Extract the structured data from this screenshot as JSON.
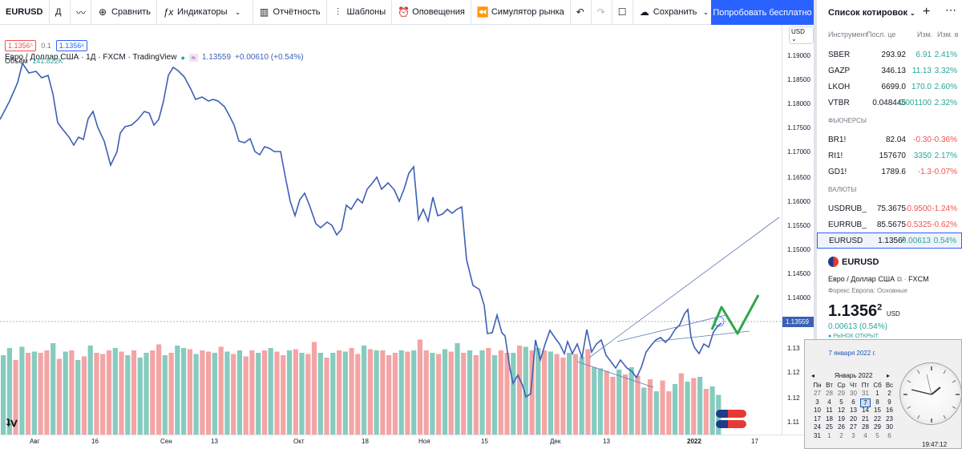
{
  "toolbar": {
    "symbol": "EURUSD",
    "interval": "Д",
    "compare": "Сравнить",
    "indicators": "Индикаторы",
    "reports": "Отчётность",
    "templates": "Шаблоны",
    "alerts": "Оповещения",
    "replay": "Симулятор рынка",
    "save": "Сохранить",
    "try_free": "Попробовать бесплатно"
  },
  "legend": {
    "title": "Евро / Доллар США · 1Д · FXCM · TradingView",
    "last": "1.13559",
    "change": "+0.00610 (+0.54%)",
    "bid": "1.1356⁵",
    "spread": "0.1",
    "ask": "1.1356⁶",
    "volume_label": "Объём",
    "volume_value": "141.822K"
  },
  "price_axis": {
    "currency": "USD",
    "ticks": [
      "1.19000",
      "1.18500",
      "1.18000",
      "1.17500",
      "1.17000",
      "1.16500",
      "1.16000",
      "1.15500",
      "1.15000",
      "1.14500",
      "1.14000",
      "1.13500",
      "1.13",
      "1.12",
      "1.12",
      "1.11"
    ],
    "current_price": "1.13559"
  },
  "time_axis": {
    "ticks": [
      "Авг",
      "16",
      "Сен",
      "13",
      "Окт",
      "18",
      "Ноя",
      "15",
      "Дек",
      "13",
      "2022",
      "17"
    ]
  },
  "chart_data": {
    "type": "line",
    "price_line_color": "#3d5fb5",
    "volume_up_color": "#86cbbf",
    "volume_down_color": "#f4a4a4",
    "ylim": [
      1.11,
      1.19
    ]
  },
  "watchlist": {
    "title": "Список котировок",
    "headers": [
      "Инструмент",
      "Посл. це",
      "Изм.",
      "Изм. в"
    ],
    "stocks": [
      {
        "sym": "SBER",
        "last": "293.92",
        "chg": "6.91",
        "pct": "2.41%",
        "dir": "up"
      },
      {
        "sym": "GAZP",
        "last": "346.13",
        "chg": "11.13",
        "pct": "3.32%",
        "dir": "up"
      },
      {
        "sym": "LKOH",
        "last": "6699.0",
        "chg": "170.0",
        "pct": "2.60%",
        "dir": "up"
      },
      {
        "sym": "VTBR",
        "last": "0.048445",
        "chg": "0.001100",
        "pct": "2.32%",
        "dir": "up"
      }
    ],
    "futures_label": "ФЬЮЧЕРСЫ",
    "futures": [
      {
        "sym": "BR1!",
        "last": "82.04",
        "chg": "-0.30",
        "pct": "-0.36%",
        "dir": "down"
      },
      {
        "sym": "RI1!",
        "last": "157670",
        "chg": "3350",
        "pct": "2.17%",
        "dir": "up"
      },
      {
        "sym": "GD1!",
        "last": "1789.6",
        "chg": "-1.3",
        "pct": "-0.07%",
        "dir": "down"
      }
    ],
    "currencies_label": "ВАЛЮТЫ",
    "currencies": [
      {
        "sym": "USDRUB_",
        "last": "75.3675",
        "chg": "-0.9500",
        "pct": "-1.24%",
        "dir": "down"
      },
      {
        "sym": "EURRUB_",
        "last": "85.5675",
        "chg": "-0.5325",
        "pct": "-0.62%",
        "dir": "down"
      },
      {
        "sym": "EURUSD",
        "last": "1.1356²",
        "chg": "0.00613",
        "pct": "0.54%",
        "dir": "up"
      }
    ]
  },
  "details": {
    "symbol": "EURUSD",
    "name": "Евро / Доллар США",
    "exchange": "FXCM",
    "session": "Форекс Европа: Основные",
    "price": "1.1356",
    "price_sup": "2",
    "currency": "USD",
    "change": "0.00613 (0.54%)",
    "status": "РЫНОК ОТКРЫТ"
  },
  "calendar": {
    "date_title": "7 января 2022 г.",
    "month": "Январь 2022",
    "weekdays": [
      "Пн",
      "Вт",
      "Ср",
      "Чт",
      "Пт",
      "Сб",
      "Вс"
    ],
    "weeks": [
      [
        "27",
        "28",
        "29",
        "30",
        "31",
        "1",
        "2"
      ],
      [
        "3",
        "4",
        "5",
        "6",
        "7",
        "8",
        "9"
      ],
      [
        "10",
        "11",
        "12",
        "13",
        "14",
        "15",
        "16"
      ],
      [
        "17",
        "18",
        "19",
        "20",
        "21",
        "22",
        "23"
      ],
      [
        "24",
        "25",
        "26",
        "27",
        "28",
        "29",
        "30"
      ],
      [
        "31",
        "1",
        "2",
        "3",
        "4",
        "5",
        "6"
      ]
    ],
    "time": "19:47:12"
  }
}
